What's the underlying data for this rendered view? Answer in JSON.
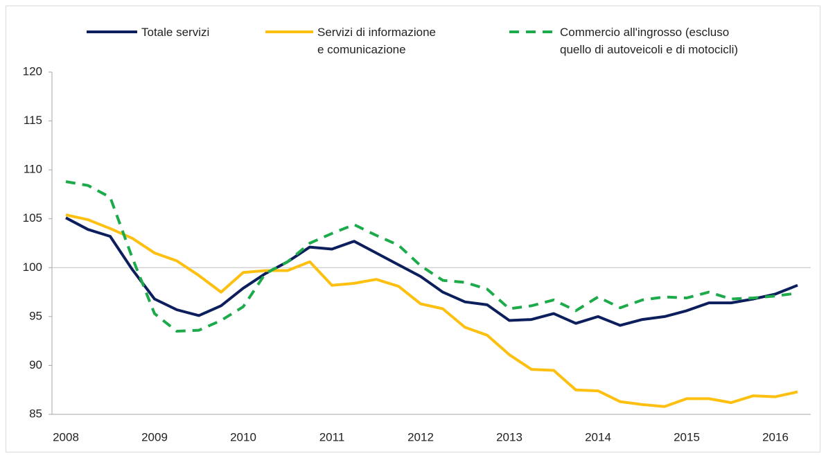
{
  "chart_data": {
    "type": "line",
    "categories": [
      "2008",
      null,
      null,
      null,
      "2009",
      null,
      null,
      null,
      "2010",
      null,
      null,
      null,
      "2011",
      null,
      null,
      null,
      "2012",
      null,
      null,
      null,
      "2013",
      null,
      null,
      null,
      "2014",
      null,
      null,
      null,
      "2015",
      null,
      null,
      null,
      "2016",
      null
    ],
    "series": [
      {
        "name": "Totale servizi",
        "color": "#0c1f5c",
        "dashed": false,
        "values": [
          105.1,
          103.9,
          103.2,
          99.8,
          96.8,
          95.7,
          95.1,
          96.1,
          97.9,
          99.4,
          100.6,
          102.1,
          101.9,
          102.7,
          101.5,
          100.3,
          99.1,
          97.5,
          96.5,
          96.2,
          94.6,
          94.7,
          95.3,
          94.3,
          95.0,
          94.1,
          94.7,
          95.0,
          95.6,
          96.4,
          96.4,
          96.8,
          97.3,
          98.2
        ]
      },
      {
        "name": "Servizi di informazione\ne comunicazione",
        "color": "#fdc010",
        "dashed": false,
        "values": [
          105.4,
          104.9,
          104.0,
          103.0,
          101.5,
          100.7,
          99.2,
          97.5,
          99.5,
          99.7,
          99.7,
          100.6,
          98.2,
          98.4,
          98.8,
          98.1,
          96.3,
          95.8,
          93.9,
          93.1,
          91.1,
          89.6,
          89.5,
          87.5,
          87.4,
          86.3,
          86.0,
          85.8,
          86.6,
          86.6,
          86.2,
          86.9,
          86.8,
          87.3
        ]
      },
      {
        "name": "Commercio all'ingrosso (escluso\nquello di autoveicoli e di motocicli)",
        "color": "#1daa4b",
        "dashed": true,
        "values": [
          108.8,
          108.4,
          107.2,
          101.0,
          95.3,
          93.5,
          93.6,
          94.6,
          96.0,
          99.4,
          100.6,
          102.5,
          103.5,
          104.4,
          103.3,
          102.3,
          100.2,
          98.7,
          98.5,
          97.8,
          95.8,
          96.1,
          96.7,
          95.6,
          97.0,
          95.9,
          96.7,
          97.0,
          96.9,
          97.5,
          96.8,
          96.9,
          97.1,
          97.4
        ]
      }
    ],
    "ylim": [
      85,
      120
    ],
    "yticks": [
      85,
      90,
      95,
      100,
      105,
      110,
      115,
      120
    ],
    "reference_line": 100,
    "legend": "top"
  }
}
